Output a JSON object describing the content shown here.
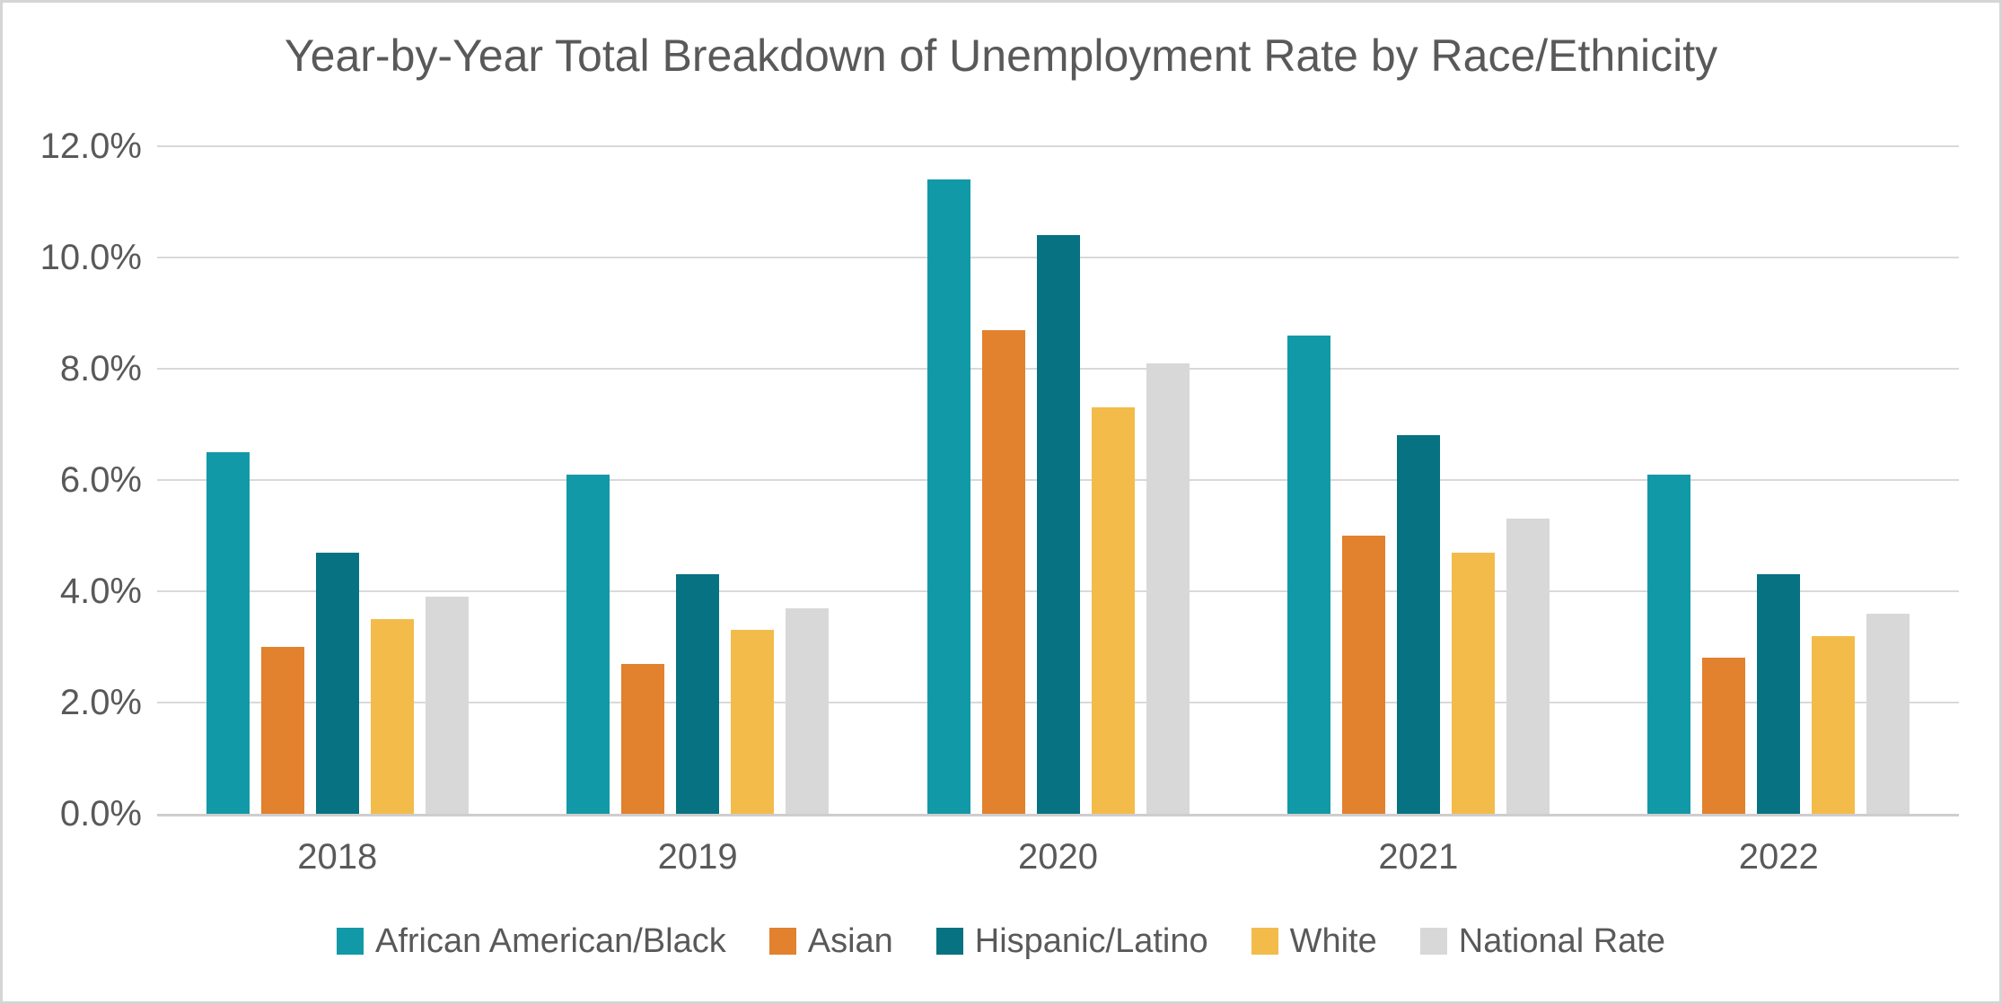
{
  "chart_data": {
    "type": "bar",
    "title": "Year-by-Year Total Breakdown of Unemployment Rate by Race/Ethnicity",
    "categories": [
      "2018",
      "2019",
      "2020",
      "2021",
      "2022"
    ],
    "series": [
      {
        "name": "African American/Black",
        "color": "#1299A7",
        "values": [
          6.5,
          6.1,
          11.4,
          8.6,
          6.1
        ]
      },
      {
        "name": "Asian",
        "color": "#E2812E",
        "values": [
          3.0,
          2.7,
          8.7,
          5.0,
          2.8
        ]
      },
      {
        "name": "Hispanic/Latino",
        "color": "#067282",
        "values": [
          4.7,
          4.3,
          10.4,
          6.8,
          4.3
        ]
      },
      {
        "name": "White",
        "color": "#F3BC4A",
        "values": [
          3.5,
          3.3,
          7.3,
          4.7,
          3.2
        ]
      },
      {
        "name": "National Rate",
        "color": "#D8D8D8",
        "values": [
          3.9,
          3.7,
          8.1,
          5.3,
          3.6
        ]
      }
    ],
    "y_axis": {
      "min": 0,
      "max": 12,
      "step": 2,
      "tick_labels": [
        "0.0%",
        "2.0%",
        "4.0%",
        "6.0%",
        "8.0%",
        "10.0%",
        "12.0%"
      ]
    },
    "x_axis": {
      "tick_labels": [
        "2018",
        "2019",
        "2020",
        "2021",
        "2022"
      ]
    },
    "grid": true,
    "legend_position": "bottom",
    "legend_labels": [
      "African American/Black",
      "Asian",
      "Hispanic/Latino",
      "White",
      "National Rate"
    ]
  },
  "theme": {
    "text_color": "#595959",
    "gridline_color": "#D9D9D9",
    "axis_line_color": "#CFCDCD",
    "background_color": "#FFFFFF",
    "frame_border_color": "#D5D5D5"
  }
}
